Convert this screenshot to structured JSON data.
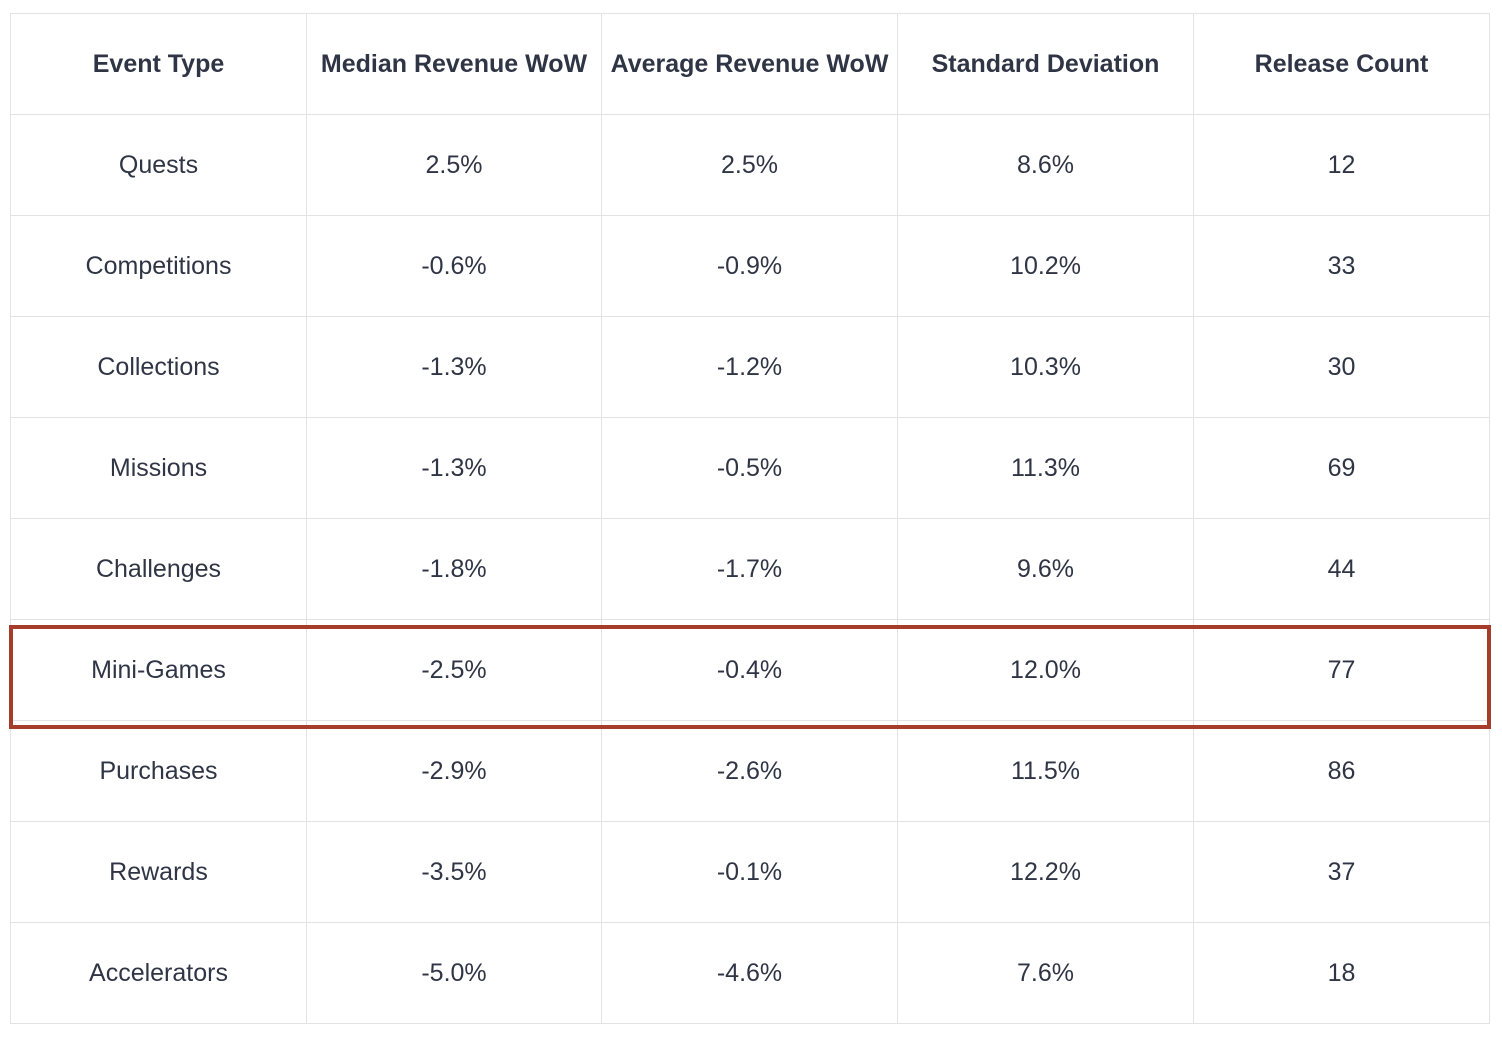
{
  "chart_data": {
    "type": "table",
    "columns": [
      "Event Type",
      "Median Revenue WoW",
      "Average Revenue WoW",
      "Standard Deviation",
      "Release Count"
    ],
    "rows": [
      [
        "Quests",
        "2.5%",
        "2.5%",
        "8.6%",
        "12"
      ],
      [
        "Competitions",
        "-0.6%",
        "-0.9%",
        "10.2%",
        "33"
      ],
      [
        "Collections",
        "-1.3%",
        "-1.2%",
        "10.3%",
        "30"
      ],
      [
        "Missions",
        "-1.3%",
        "-0.5%",
        "11.3%",
        "69"
      ],
      [
        "Challenges",
        "-1.8%",
        "-1.7%",
        "9.6%",
        "44"
      ],
      [
        "Mini-Games",
        "-2.5%",
        "-0.4%",
        "12.0%",
        "77"
      ],
      [
        "Purchases",
        "-2.9%",
        "-2.6%",
        "11.5%",
        "86"
      ],
      [
        "Rewards",
        "-3.5%",
        "-0.1%",
        "12.2%",
        "37"
      ],
      [
        "Accelerators",
        "-5.0%",
        "-4.6%",
        "7.6%",
        "18"
      ]
    ],
    "highlighted_row": "Mini-Games",
    "highlight_color": "#a63d2a",
    "text_color": "#2f3545",
    "grid_color": "#e3e3e6"
  }
}
